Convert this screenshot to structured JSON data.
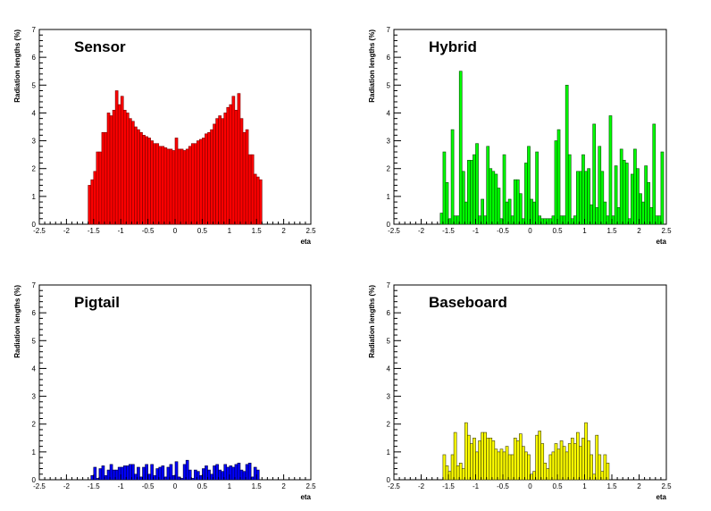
{
  "chart_data": [
    {
      "type": "bar",
      "title": "Sensor",
      "xlabel": "eta",
      "ylabel": "Radiation lengths (%)",
      "xlim": [
        -2.5,
        2.5
      ],
      "ylim": [
        0,
        7
      ],
      "xticks": [
        "-2.5",
        "-2",
        "-1.5",
        "-1",
        "-0.5",
        "0",
        "0.5",
        "1",
        "1.5",
        "2",
        "2.5"
      ],
      "yticks": [
        "0",
        "1",
        "2",
        "3",
        "4",
        "5",
        "6",
        "7"
      ],
      "fill_color": "#ff0000",
      "bin_width": 0.05,
      "x_start": -1.6,
      "values": [
        1.4,
        1.6,
        1.9,
        2.6,
        2.6,
        3.3,
        3.3,
        4.0,
        3.9,
        4.1,
        4.8,
        4.3,
        4.6,
        4.1,
        4.0,
        3.8,
        3.7,
        3.5,
        3.4,
        3.3,
        3.2,
        3.15,
        3.1,
        3.0,
        2.9,
        2.9,
        2.8,
        2.8,
        2.75,
        2.7,
        2.7,
        2.65,
        3.1,
        2.7,
        2.7,
        2.65,
        2.7,
        2.8,
        2.9,
        2.9,
        3.0,
        3.05,
        3.1,
        3.25,
        3.3,
        3.4,
        3.6,
        3.8,
        3.9,
        3.8,
        4.0,
        4.2,
        4.3,
        4.6,
        4.1,
        4.7,
        3.8,
        3.3,
        3.4,
        2.5,
        2.5,
        1.8,
        1.7,
        1.6
      ]
    },
    {
      "type": "bar",
      "title": "Hybrid",
      "xlabel": "eta",
      "ylabel": "Radiation lengths (%)",
      "xlim": [
        -2.5,
        2.5
      ],
      "ylim": [
        0,
        7
      ],
      "xticks": [
        "-2.5",
        "-2",
        "-1.5",
        "-1",
        "-0.5",
        "0",
        "0.5",
        "1",
        "1.5",
        "2",
        "2.5"
      ],
      "yticks": [
        "0",
        "1",
        "2",
        "3",
        "4",
        "5",
        "6",
        "7"
      ],
      "fill_color": "#00ff00",
      "bin_width": 0.05,
      "x_start": -1.65,
      "values": [
        0.4,
        2.6,
        1.5,
        0.2,
        3.4,
        0.3,
        0.3,
        5.5,
        1.9,
        0.8,
        2.3,
        2.3,
        2.5,
        2.9,
        0.3,
        0.9,
        0.3,
        2.8,
        2.0,
        1.9,
        1.8,
        1.3,
        0.2,
        2.5,
        0.8,
        0.9,
        0.3,
        1.6,
        1.6,
        1.1,
        0.2,
        2.2,
        2.8,
        0.9,
        0.8,
        2.6,
        0.3,
        0.2,
        0.2,
        0.2,
        0.2,
        0.3,
        3.0,
        3.4,
        0.3,
        0.3,
        5.0,
        2.5,
        0.2,
        0.3,
        1.9,
        1.9,
        2.5,
        1.9,
        2.0,
        0.7,
        3.6,
        0.6,
        2.8,
        1.9,
        0.8,
        0.3,
        3.9,
        0.3,
        2.1,
        0.6,
        2.7,
        2.3,
        2.2,
        0.2,
        1.8,
        2.7,
        2.0,
        1.1,
        0.8,
        2.1,
        1.5,
        0.6,
        3.6,
        0.3,
        0.3,
        2.6
      ]
    },
    {
      "type": "bar",
      "title": "Pigtail",
      "xlabel": "eta",
      "ylabel": "Radiation lengths (%)",
      "xlim": [
        -2.5,
        2.5
      ],
      "ylim": [
        0,
        7
      ],
      "xticks": [
        "-2.5",
        "-2",
        "-1.5",
        "-1",
        "-0.5",
        "0",
        "0.5",
        "1",
        "1.5",
        "2",
        "2.5"
      ],
      "yticks": [
        "0",
        "1",
        "2",
        "3",
        "4",
        "5",
        "6",
        "7"
      ],
      "fill_color": "#0000ff",
      "bin_width": 0.05,
      "x_start": -1.55,
      "values": [
        0.15,
        0.45,
        0.05,
        0.4,
        0.5,
        0.15,
        0.35,
        0.55,
        0.35,
        0.35,
        0.45,
        0.45,
        0.5,
        0.5,
        0.55,
        0.55,
        0.2,
        0.45,
        0.1,
        0.45,
        0.55,
        0.2,
        0.55,
        0.15,
        0.4,
        0.45,
        0.5,
        0.1,
        0.45,
        0.55,
        0.15,
        0.65,
        0.1,
        0.05,
        0.55,
        0.7,
        0.35,
        0.05,
        0.35,
        0.3,
        0.15,
        0.4,
        0.5,
        0.35,
        0.2,
        0.5,
        0.55,
        0.35,
        0.3,
        0.55,
        0.45,
        0.5,
        0.45,
        0.55,
        0.6,
        0.35,
        0.3,
        0.55,
        0.6,
        0.1,
        0.45,
        0.35
      ]
    },
    {
      "type": "bar",
      "title": "Baseboard",
      "xlabel": "eta",
      "ylabel": "Radiation lengths (%)",
      "xlim": [
        -2.5,
        2.5
      ],
      "ylim": [
        0,
        7
      ],
      "xticks": [
        "-2.5",
        "-2",
        "-1.5",
        "-1",
        "-0.5",
        "0",
        "0.5",
        "1",
        "1.5",
        "2",
        "2.5"
      ],
      "yticks": [
        "0",
        "1",
        "2",
        "3",
        "4",
        "5",
        "6",
        "7"
      ],
      "fill_color": "#ffff00",
      "bin_width": 0.05,
      "x_start": -1.6,
      "values": [
        0.9,
        0.5,
        0.3,
        0.9,
        1.7,
        0.5,
        0.6,
        0.4,
        2.05,
        1.6,
        1.3,
        1.5,
        1.0,
        1.4,
        1.7,
        1.7,
        1.5,
        1.5,
        1.4,
        1.1,
        1.0,
        1.1,
        1.0,
        1.2,
        0.9,
        0.9,
        1.5,
        1.4,
        1.65,
        1.2,
        1.0,
        0.9,
        0.2,
        0.3,
        1.6,
        1.75,
        1.3,
        0.6,
        0.4,
        0.9,
        1.0,
        1.3,
        1.1,
        1.4,
        1.2,
        1.0,
        1.3,
        1.5,
        1.3,
        1.7,
        1.2,
        1.5,
        2.05,
        1.4,
        0.9,
        0.2,
        1.6,
        0.9,
        0.3,
        0.9,
        0.6
      ]
    }
  ]
}
